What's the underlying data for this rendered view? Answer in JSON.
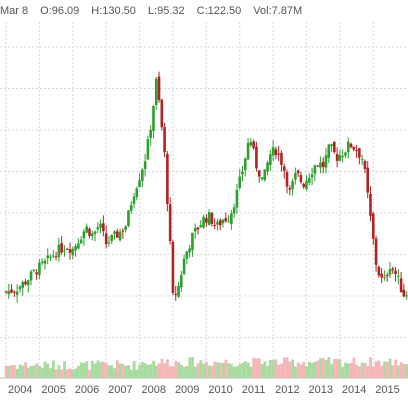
{
  "header": {
    "date": "Mar 8",
    "open": "O:96.09",
    "high": "H:130.50",
    "low": "L:95.32",
    "close": "C:122.50",
    "volume": "Vol:7.87M"
  },
  "colors": {
    "up": "#2ca02c",
    "down": "#b22222",
    "vol_up": "#a9dba0",
    "vol_down": "#f4b6b6",
    "grid": "#d9d9d9",
    "text": "#555555"
  },
  "chart_data": {
    "type": "candlestick",
    "x_tick_labels": [
      "2004",
      "2005",
      "2006",
      "2007",
      "2008",
      "2009",
      "2010",
      "2011",
      "2012",
      "2013",
      "2014",
      "2015"
    ],
    "x_range": [
      2004.0,
      2016.1
    ],
    "y_range": [
      40,
      140
    ],
    "grid": true,
    "close_path": [
      [
        2004.0,
        49
      ],
      [
        2004.3,
        50
      ],
      [
        2004.6,
        53
      ],
      [
        2004.9,
        57
      ],
      [
        2005.2,
        60
      ],
      [
        2005.5,
        64
      ],
      [
        2005.8,
        66
      ],
      [
        2006.0,
        65
      ],
      [
        2006.2,
        69
      ],
      [
        2006.4,
        73
      ],
      [
        2006.6,
        70
      ],
      [
        2006.8,
        74
      ],
      [
        2007.0,
        67
      ],
      [
        2007.2,
        69
      ],
      [
        2007.4,
        71
      ],
      [
        2007.6,
        74
      ],
      [
        2007.8,
        85
      ],
      [
        2008.0,
        92
      ],
      [
        2008.2,
        100
      ],
      [
        2008.35,
        112
      ],
      [
        2008.5,
        127
      ],
      [
        2008.6,
        118
      ],
      [
        2008.75,
        100
      ],
      [
        2008.9,
        70
      ],
      [
        2009.0,
        47
      ],
      [
        2009.15,
        50
      ],
      [
        2009.35,
        62
      ],
      [
        2009.6,
        70
      ],
      [
        2009.9,
        76
      ],
      [
        2010.1,
        77
      ],
      [
        2010.3,
        73
      ],
      [
        2010.5,
        76
      ],
      [
        2010.7,
        77
      ],
      [
        2010.9,
        85
      ],
      [
        2011.1,
        95
      ],
      [
        2011.3,
        107
      ],
      [
        2011.5,
        96
      ],
      [
        2011.7,
        90
      ],
      [
        2011.9,
        100
      ],
      [
        2012.1,
        102
      ],
      [
        2012.3,
        96
      ],
      [
        2012.5,
        86
      ],
      [
        2012.7,
        93
      ],
      [
        2012.9,
        89
      ],
      [
        2013.1,
        93
      ],
      [
        2013.3,
        97
      ],
      [
        2013.5,
        96
      ],
      [
        2013.7,
        103
      ],
      [
        2013.9,
        99
      ],
      [
        2014.1,
        101
      ],
      [
        2014.3,
        104
      ],
      [
        2014.5,
        102
      ],
      [
        2014.7,
        98
      ],
      [
        2014.9,
        78
      ],
      [
        2015.1,
        58
      ],
      [
        2015.3,
        52
      ],
      [
        2015.5,
        59
      ],
      [
        2015.7,
        55
      ],
      [
        2015.9,
        48
      ],
      [
        2016.1,
        49
      ]
    ]
  }
}
